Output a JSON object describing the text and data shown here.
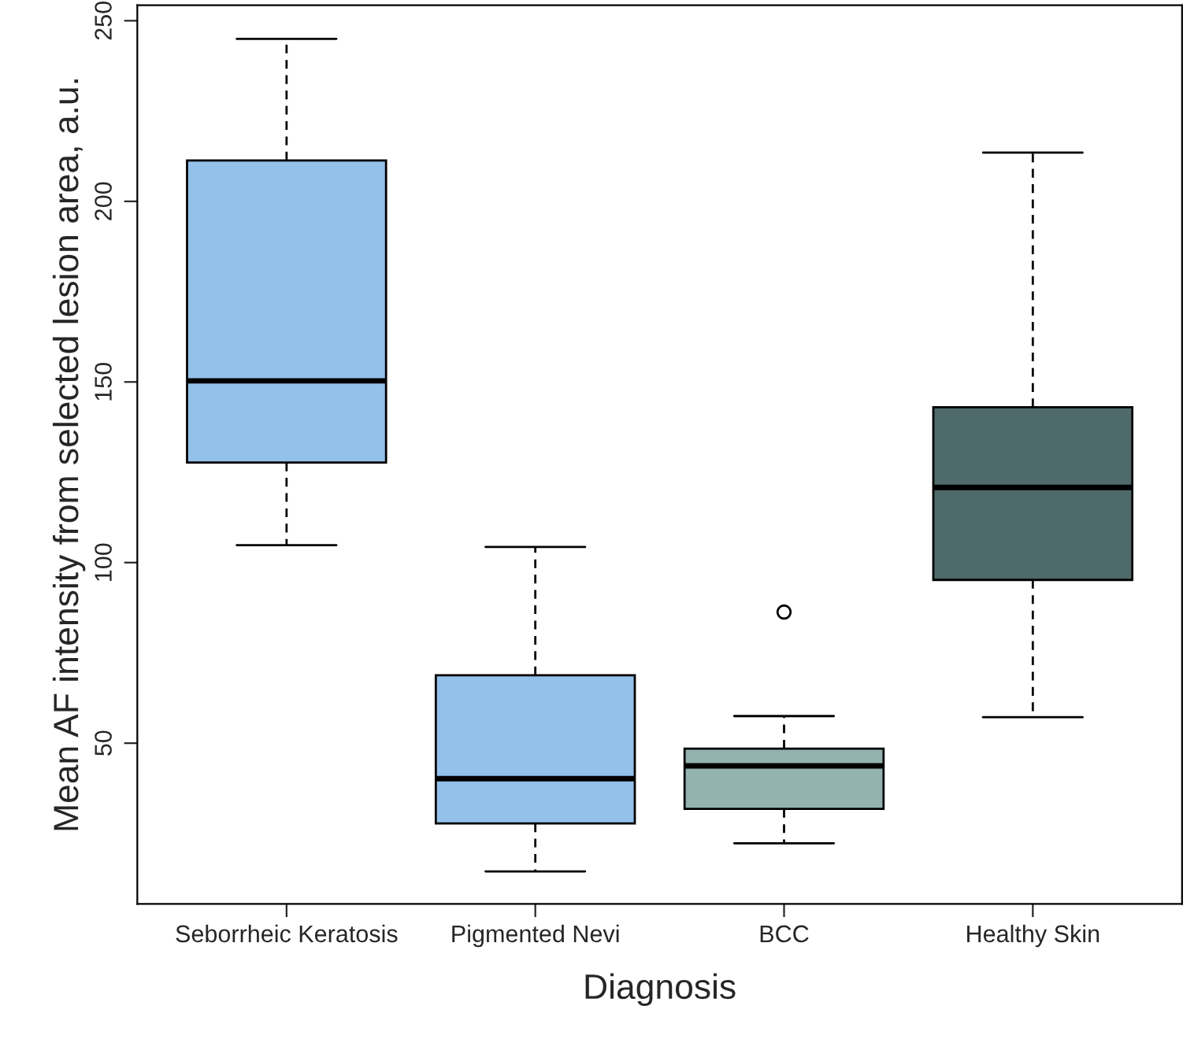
{
  "chart_data": {
    "type": "box",
    "xlabel": "Diagnosis",
    "ylabel": "Mean AF intensity from selected lesion area, a.u.",
    "categories": [
      "Seborrheic Keratosis",
      "Pigmented Nevi",
      "BCC",
      "Healthy Skin"
    ],
    "colors": [
      "#94c1e9",
      "#94c1e9",
      "#93b3b1",
      "#4f6a6a"
    ],
    "boxes": [
      {
        "low": 104.8,
        "q1": 127.7,
        "median": 150.3,
        "q3": 211.3,
        "high": 245
      },
      {
        "low": 14.5,
        "q1": 27.8,
        "median": 40.2,
        "q3": 68.8,
        "high": 104.3
      },
      {
        "low": 22.3,
        "q1": 31.8,
        "median": 43.7,
        "q3": 48.5,
        "high": 57.5,
        "outliers": [
          86.3
        ]
      },
      {
        "low": 57.2,
        "q1": 95.2,
        "median": 120.8,
        "q3": 143,
        "high": 213.5
      }
    ],
    "ylim": [
      5.5,
      254.3
    ],
    "yticks": [
      50,
      100,
      150,
      200,
      250
    ],
    "grid": false
  }
}
